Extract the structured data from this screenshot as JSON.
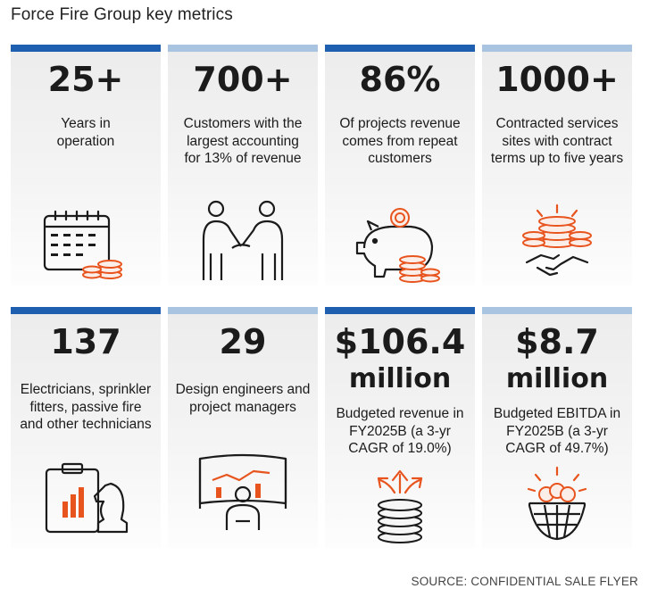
{
  "title": "Force Fire Group key metrics",
  "source": "SOURCE: CONFIDENTIAL SALE FLYER",
  "colors": {
    "accent_blue": "#1f5fb0",
    "light_blue": "#a9c4e0",
    "icon_orange": "#e8541e",
    "text": "#1b1b1b"
  },
  "metrics": [
    {
      "value": "25+",
      "description": "Years in operation",
      "icon": "calendar-coins-icon"
    },
    {
      "value": "700+",
      "description": "Customers with the largest accounting for 13% of revenue",
      "icon": "handshake-people-icon"
    },
    {
      "value": "86%",
      "description": "Of projects revenue comes from repeat customers",
      "icon": "piggy-bank-icon"
    },
    {
      "value": "1000+",
      "description": "Contracted services sites with contract terms up to five years",
      "icon": "coins-handshake-icon"
    },
    {
      "value": "137",
      "description": "Electricians, sprinkler fitters, passive fire and other technicians",
      "icon": "chess-knight-clipboard-icon"
    },
    {
      "value": "29",
      "description": "Design engineers and project managers",
      "icon": "presenter-screen-icon"
    },
    {
      "value_line1": "$106.4",
      "value_line2": "million",
      "description": "Budgeted revenue in FY2025B (a 3-yr CAGR of 19.0%)",
      "icon": "coins-arrows-icon"
    },
    {
      "value_line1": "$8.7",
      "value_line2": "million",
      "description": "Budgeted EBITDA in FY2025B (a 3-yr CAGR of 49.7%)",
      "icon": "money-basket-icon"
    }
  ]
}
